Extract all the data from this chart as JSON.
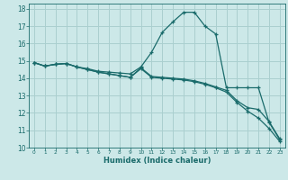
{
  "xlabel": "Humidex (Indice chaleur)",
  "bg_color": "#cce8e8",
  "grid_color": "#aacfcf",
  "line_color": "#1a6b6b",
  "xlim": [
    -0.5,
    23.5
  ],
  "ylim": [
    10,
    18.3
  ],
  "xticks": [
    0,
    1,
    2,
    3,
    4,
    5,
    6,
    7,
    8,
    9,
    10,
    11,
    12,
    13,
    14,
    15,
    16,
    17,
    18,
    19,
    20,
    21,
    22,
    23
  ],
  "yticks": [
    10,
    11,
    12,
    13,
    14,
    15,
    16,
    17,
    18
  ],
  "line1_x": [
    0,
    1,
    2,
    3,
    4,
    5,
    6,
    7,
    8,
    9,
    10,
    11,
    12,
    13,
    14,
    15,
    16,
    17,
    18,
    19,
    20,
    21,
    22,
    23
  ],
  "line1_y": [
    14.9,
    14.7,
    14.8,
    14.85,
    14.65,
    14.55,
    14.4,
    14.35,
    14.3,
    14.25,
    14.65,
    15.5,
    16.65,
    17.25,
    17.8,
    17.8,
    17.0,
    16.55,
    13.45,
    13.45,
    13.45,
    13.45,
    11.45,
    10.45
  ],
  "line2_x": [
    0,
    1,
    2,
    3,
    4,
    5,
    6,
    7,
    8,
    9,
    10,
    11,
    12,
    13,
    14,
    15,
    16,
    17,
    18,
    19,
    20,
    21,
    22,
    23
  ],
  "line2_y": [
    14.9,
    14.7,
    14.8,
    14.85,
    14.65,
    14.5,
    14.35,
    14.25,
    14.15,
    14.05,
    14.6,
    14.1,
    14.05,
    14.0,
    13.95,
    13.85,
    13.7,
    13.5,
    13.3,
    12.7,
    12.3,
    12.2,
    11.5,
    10.5
  ],
  "line3_x": [
    0,
    1,
    2,
    3,
    4,
    5,
    6,
    7,
    8,
    9,
    10,
    11,
    12,
    13,
    14,
    15,
    16,
    17,
    18,
    19,
    20,
    21,
    22,
    23
  ],
  "line3_y": [
    14.9,
    14.7,
    14.8,
    14.85,
    14.65,
    14.5,
    14.35,
    14.25,
    14.15,
    14.05,
    14.55,
    14.05,
    14.0,
    13.95,
    13.9,
    13.8,
    13.65,
    13.45,
    13.2,
    12.6,
    12.1,
    11.7,
    11.1,
    10.35
  ]
}
